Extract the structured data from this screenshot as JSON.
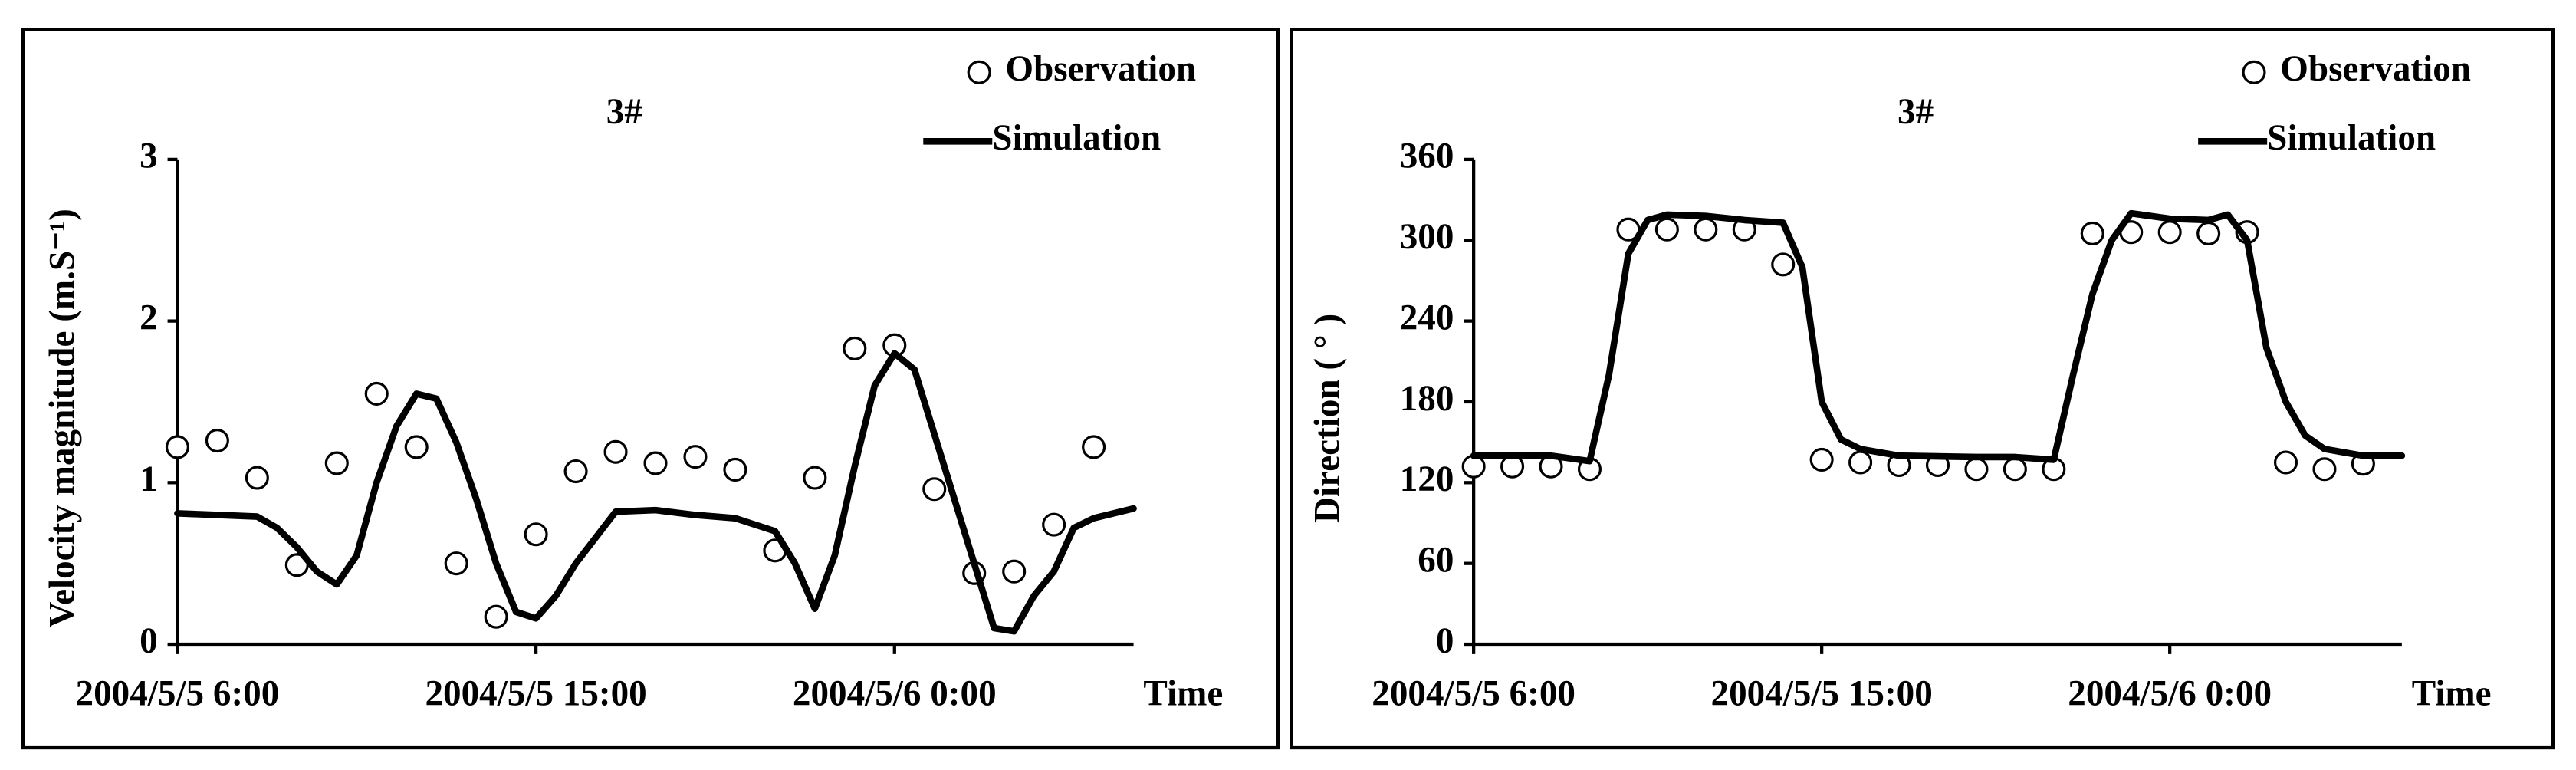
{
  "chart_data": [
    {
      "type": "line",
      "title": "3#",
      "x_label": "Time",
      "y_label": "Velocity magnitude (m.S⁻¹)",
      "xlim": [
        "2004/5/5 6:00",
        "2004/5/6 6:00"
      ],
      "xticks": [
        "2004/5/5 6:00",
        "2004/5/5 15:00",
        "2004/5/6 0:00"
      ],
      "ylim": [
        0,
        3
      ],
      "yticks": [
        0,
        1,
        2,
        3
      ],
      "ytick_color": "#808080",
      "series": [
        {
          "name": "Observation",
          "marker": "circle",
          "color": "#000000",
          "x": [
            "2004/5/5 6:00",
            "2004/5/5 7:00",
            "2004/5/5 8:00",
            "2004/5/5 9:00",
            "2004/5/5 10:00",
            "2004/5/5 11:00",
            "2004/5/5 12:00",
            "2004/5/5 13:00",
            "2004/5/5 14:00",
            "2004/5/5 15:00",
            "2004/5/5 16:00",
            "2004/5/5 17:00",
            "2004/5/5 18:00",
            "2004/5/5 19:00",
            "2004/5/5 20:00",
            "2004/5/5 21:00",
            "2004/5/5 22:00",
            "2004/5/5 23:00",
            "2004/5/6 0:00",
            "2004/5/6 1:00",
            "2004/5/6 2:00",
            "2004/5/6 3:00",
            "2004/5/6 4:00",
            "2004/5/6 5:00"
          ],
          "values": [
            1.22,
            1.26,
            1.03,
            0.49,
            1.12,
            1.55,
            1.22,
            0.5,
            0.17,
            0.68,
            1.07,
            1.19,
            1.12,
            1.16,
            1.08,
            0.58,
            1.03,
            1.83,
            1.85,
            0.96,
            0.44,
            0.45,
            0.74,
            1.22
          ]
        },
        {
          "name": "Simulation",
          "marker": "line",
          "color": "#000000",
          "x": [
            "2004/5/5 6:00",
            "2004/5/5 7:00",
            "2004/5/5 8:00",
            "2004/5/5 8:30",
            "2004/5/5 9:00",
            "2004/5/5 9:30",
            "2004/5/5 10:00",
            "2004/5/5 10:30",
            "2004/5/5 11:00",
            "2004/5/5 11:30",
            "2004/5/5 12:00",
            "2004/5/5 12:30",
            "2004/5/5 13:00",
            "2004/5/5 13:30",
            "2004/5/5 14:00",
            "2004/5/5 14:30",
            "2004/5/5 15:00",
            "2004/5/5 15:30",
            "2004/5/5 16:00",
            "2004/5/5 17:00",
            "2004/5/5 18:00",
            "2004/5/5 19:00",
            "2004/5/5 20:00",
            "2004/5/5 21:00",
            "2004/5/5 21:30",
            "2004/5/5 22:00",
            "2004/5/5 22:30",
            "2004/5/5 23:00",
            "2004/5/5 23:30",
            "2004/5/6 0:00",
            "2004/5/6 0:30",
            "2004/5/6 1:00",
            "2004/5/6 1:30",
            "2004/5/6 2:00",
            "2004/5/6 2:30",
            "2004/5/6 3:00",
            "2004/5/6 3:30",
            "2004/5/6 4:00",
            "2004/5/6 4:30",
            "2004/5/6 5:00",
            "2004/5/6 6:00"
          ],
          "values": [
            0.81,
            0.8,
            0.79,
            0.72,
            0.6,
            0.45,
            0.37,
            0.55,
            1.0,
            1.35,
            1.55,
            1.52,
            1.25,
            0.9,
            0.5,
            0.2,
            0.16,
            0.3,
            0.5,
            0.82,
            0.83,
            0.8,
            0.78,
            0.7,
            0.5,
            0.22,
            0.55,
            1.1,
            1.6,
            1.8,
            1.7,
            1.3,
            0.9,
            0.5,
            0.1,
            0.08,
            0.3,
            0.45,
            0.72,
            0.78,
            0.84
          ]
        }
      ]
    },
    {
      "type": "line",
      "title": "3#",
      "x_label": "Time",
      "y_label": "Direction ( ° )",
      "xlim": [
        "2004/5/5 6:00",
        "2004/5/6 6:00"
      ],
      "xticks": [
        "2004/5/5 6:00",
        "2004/5/5 15:00",
        "2004/5/6 0:00"
      ],
      "ylim": [
        0,
        360
      ],
      "yticks": [
        0,
        60,
        120,
        180,
        240,
        300,
        360
      ],
      "ytick_color": "#000000",
      "series": [
        {
          "name": "Observation",
          "marker": "circle",
          "color": "#000000",
          "x": [
            "2004/5/5 6:00",
            "2004/5/5 7:00",
            "2004/5/5 8:00",
            "2004/5/5 9:00",
            "2004/5/5 10:00",
            "2004/5/5 11:00",
            "2004/5/5 12:00",
            "2004/5/5 13:00",
            "2004/5/5 14:00",
            "2004/5/5 15:00",
            "2004/5/5 16:00",
            "2004/5/5 17:00",
            "2004/5/5 18:00",
            "2004/5/5 19:00",
            "2004/5/5 20:00",
            "2004/5/5 21:00",
            "2004/5/5 22:00",
            "2004/5/5 23:00",
            "2004/5/6 0:00",
            "2004/5/6 1:00",
            "2004/5/6 2:00",
            "2004/5/6 3:00",
            "2004/5/6 4:00",
            "2004/5/6 5:00"
          ],
          "values": [
            132,
            132,
            132,
            130,
            308,
            308,
            308,
            308,
            282,
            137,
            135,
            133,
            133,
            130,
            130,
            130,
            305,
            306,
            306,
            305,
            306,
            135,
            130,
            134
          ]
        },
        {
          "name": "Simulation",
          "marker": "line",
          "color": "#000000",
          "x": [
            "2004/5/5 6:00",
            "2004/5/5 8:00",
            "2004/5/5 9:00",
            "2004/5/5 9:30",
            "2004/5/5 10:00",
            "2004/5/5 10:30",
            "2004/5/5 11:00",
            "2004/5/5 12:00",
            "2004/5/5 13:00",
            "2004/5/5 14:00",
            "2004/5/5 14:30",
            "2004/5/5 15:00",
            "2004/5/5 15:30",
            "2004/5/5 16:00",
            "2004/5/5 17:00",
            "2004/5/5 19:00",
            "2004/5/5 20:00",
            "2004/5/5 21:00",
            "2004/5/5 21:30",
            "2004/5/5 22:00",
            "2004/5/5 22:30",
            "2004/5/5 23:00",
            "2004/5/6 0:00",
            "2004/5/6 1:00",
            "2004/5/6 1:30",
            "2004/5/6 2:00",
            "2004/5/6 2:30",
            "2004/5/6 3:00",
            "2004/5/6 3:30",
            "2004/5/6 4:00",
            "2004/5/6 5:00",
            "2004/5/6 6:00"
          ],
          "values": [
            140,
            140,
            136,
            200,
            290,
            315,
            319,
            318,
            315,
            313,
            280,
            180,
            152,
            145,
            140,
            139,
            139,
            137,
            200,
            260,
            300,
            320,
            316,
            315,
            319,
            300,
            220,
            180,
            155,
            145,
            140,
            140
          ]
        }
      ]
    }
  ]
}
